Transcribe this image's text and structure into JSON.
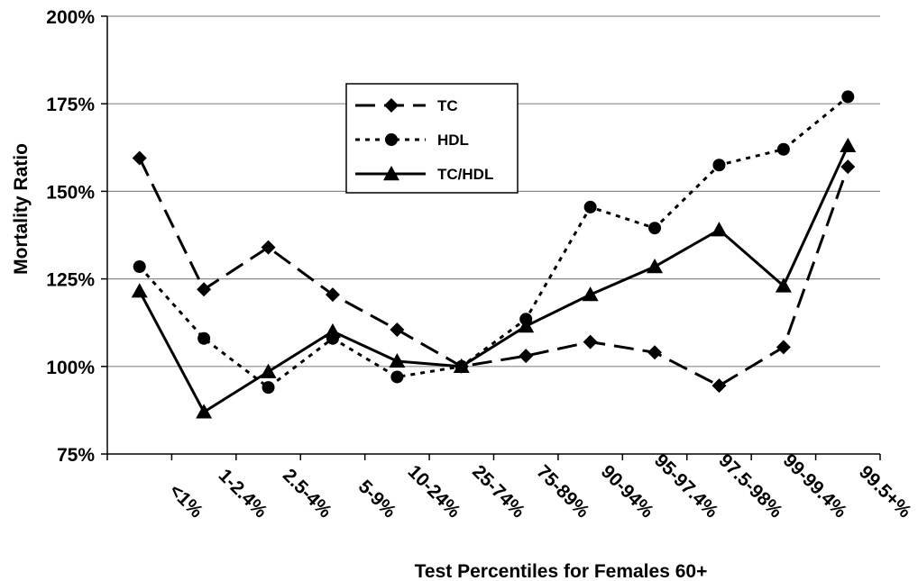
{
  "chart_data": {
    "type": "line",
    "title": "",
    "xlabel": "Test Percentiles for Females 60+",
    "ylabel": "Mortality Ratio",
    "ylim": [
      75,
      200
    ],
    "y_ticks": [
      "75%",
      "100%",
      "125%",
      "150%",
      "175%",
      "200%"
    ],
    "y_tick_values": [
      75,
      100,
      125,
      150,
      175,
      200
    ],
    "grid": "horizontal",
    "legend_position": "top-center",
    "categories": [
      "<1%",
      "1-2.4%",
      "2.5-4%",
      "5-9%",
      "10-24%",
      "25-74%",
      "75-89%",
      "90-94%",
      "95-97.4%",
      "97.5-98%",
      "99-99.4%",
      "99.5+%"
    ],
    "series": [
      {
        "name": "TC",
        "style": "long-dash",
        "marker": "diamond",
        "color": "#000000",
        "values": [
          159.5,
          122,
          134,
          120.5,
          110.5,
          100,
          103,
          107,
          104,
          94.5,
          105.5,
          157
        ]
      },
      {
        "name": "HDL",
        "style": "dotted",
        "marker": "circle",
        "color": "#000000",
        "values": [
          128.5,
          108,
          94,
          108,
          97,
          100,
          113.5,
          145.5,
          139.5,
          157.5,
          162,
          177
        ]
      },
      {
        "name": "TC/HDL",
        "style": "solid",
        "marker": "triangle",
        "color": "#000000",
        "values": [
          121.5,
          87,
          98.5,
          110,
          101.5,
          100,
          111.5,
          120.5,
          128.5,
          139,
          123,
          163
        ]
      }
    ]
  }
}
